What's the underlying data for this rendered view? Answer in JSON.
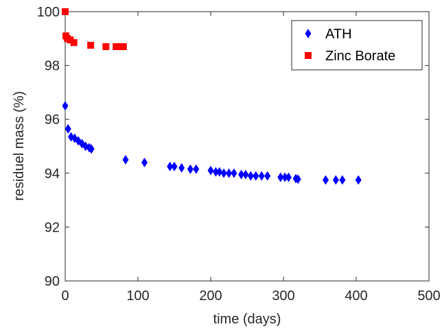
{
  "chart_data": {
    "type": "scatter",
    "title": "",
    "xlabel": "time (days)",
    "ylabel": "residuel mass (%)",
    "xlim": [
      0,
      500
    ],
    "ylim": [
      90,
      100
    ],
    "xticks": [
      0,
      100,
      200,
      300,
      400,
      500
    ],
    "yticks": [
      90,
      92,
      94,
      96,
      98,
      100
    ],
    "grid": false,
    "legend_position": "top-right",
    "series": [
      {
        "name": "ATH",
        "marker": "diamond",
        "color": "#0000ff",
        "x": [
          0,
          4,
          8,
          13,
          18,
          23,
          28,
          33,
          36,
          83,
          109,
          144,
          150,
          160,
          172,
          180,
          200,
          207,
          212,
          218,
          225,
          232,
          242,
          248,
          255,
          262,
          270,
          278,
          296,
          302,
          307,
          317,
          320,
          358,
          372,
          381,
          403
        ],
        "y": [
          96.5,
          95.65,
          95.35,
          95.3,
          95.2,
          95.1,
          95.0,
          94.95,
          94.9,
          94.5,
          94.4,
          94.25,
          94.25,
          94.2,
          94.15,
          94.15,
          94.1,
          94.05,
          94.05,
          94.0,
          94.0,
          94.0,
          93.95,
          93.95,
          93.9,
          93.9,
          93.9,
          93.9,
          93.85,
          93.85,
          93.85,
          93.8,
          93.78,
          93.75,
          93.75,
          93.75,
          93.75
        ]
      },
      {
        "name": "Zinc Borate",
        "marker": "square",
        "color": "#ff0000",
        "x": [
          0,
          1,
          3,
          7,
          12,
          35,
          56,
          70,
          75,
          80
        ],
        "y": [
          100.0,
          99.1,
          99.0,
          98.95,
          98.85,
          98.75,
          98.7,
          98.7,
          98.7,
          98.7
        ]
      }
    ]
  }
}
